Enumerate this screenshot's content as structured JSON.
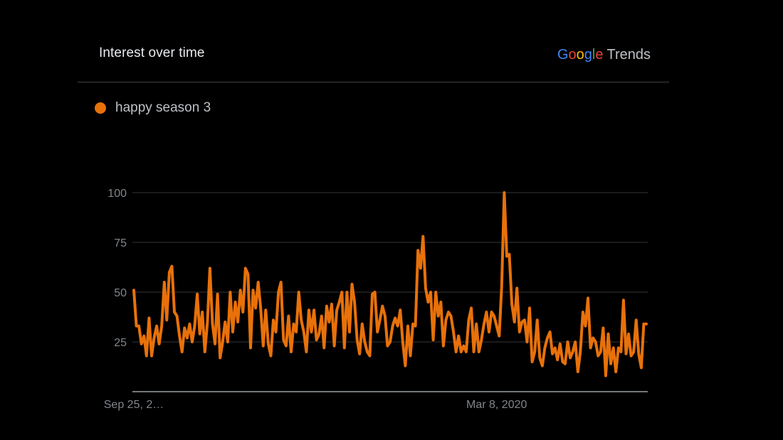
{
  "header": {
    "title": "Interest over time",
    "brand": {
      "letters": [
        {
          "char": "G",
          "color": "#4285f4"
        },
        {
          "char": "o",
          "color": "#ea4335"
        },
        {
          "char": "o",
          "color": "#fbbc05"
        },
        {
          "char": "g",
          "color": "#4285f4"
        },
        {
          "char": "l",
          "color": "#34a853"
        },
        {
          "char": "e",
          "color": "#ea4335"
        }
      ],
      "suffix": "Trends"
    }
  },
  "legend": {
    "label": "happy season 3",
    "color": "#e8710a"
  },
  "chart_data": {
    "type": "line",
    "xlabel": "",
    "ylabel": "",
    "ylim": [
      0,
      100
    ],
    "yticks": [
      25,
      50,
      75,
      100
    ],
    "grid": true,
    "x_tick_labels": [
      "Sep 25, 2…",
      "Mar 8, 2020"
    ],
    "series": [
      {
        "name": "happy season 3",
        "color": "#e8710a",
        "values": [
          51,
          33,
          33,
          24,
          28,
          18,
          37,
          18,
          27,
          33,
          24,
          33,
          55,
          36,
          60,
          63,
          40,
          38,
          28,
          20,
          32,
          27,
          34,
          25,
          33,
          49,
          29,
          40,
          20,
          35,
          62,
          34,
          24,
          49,
          17,
          25,
          35,
          25,
          50,
          30,
          45,
          35,
          51,
          40,
          62,
          59,
          22,
          51,
          42,
          55,
          42,
          23,
          41,
          24,
          18,
          36,
          30,
          50,
          55,
          26,
          23,
          38,
          20,
          34,
          30,
          50,
          36,
          30,
          20,
          41,
          30,
          41,
          26,
          29,
          38,
          22,
          43,
          35,
          44,
          23,
          41,
          45,
          50,
          22,
          50,
          30,
          54,
          45,
          26,
          19,
          34,
          25,
          20,
          18,
          49,
          50,
          30,
          36,
          43,
          38,
          23,
          25,
          33,
          37,
          33,
          41,
          25,
          13,
          33,
          18,
          34,
          33,
          71,
          62,
          78,
          52,
          45,
          50,
          26,
          50,
          38,
          45,
          23,
          36,
          40,
          38,
          30,
          20,
          28,
          20,
          23,
          20,
          36,
          42,
          20,
          34,
          20,
          26,
          34,
          40,
          30,
          40,
          38,
          33,
          28,
          53,
          100,
          68,
          69,
          44,
          35,
          52,
          30,
          35,
          36,
          25,
          42,
          15,
          20,
          36,
          17,
          13,
          22,
          27,
          30,
          19,
          22,
          16,
          24,
          15,
          14,
          25,
          17,
          20,
          25,
          10,
          20,
          40,
          33,
          47,
          22,
          27,
          25,
          18,
          20,
          32,
          8,
          29,
          14,
          22,
          10,
          22,
          20,
          46,
          19,
          29,
          18,
          20,
          36,
          19,
          12,
          34,
          34
        ]
      }
    ]
  }
}
